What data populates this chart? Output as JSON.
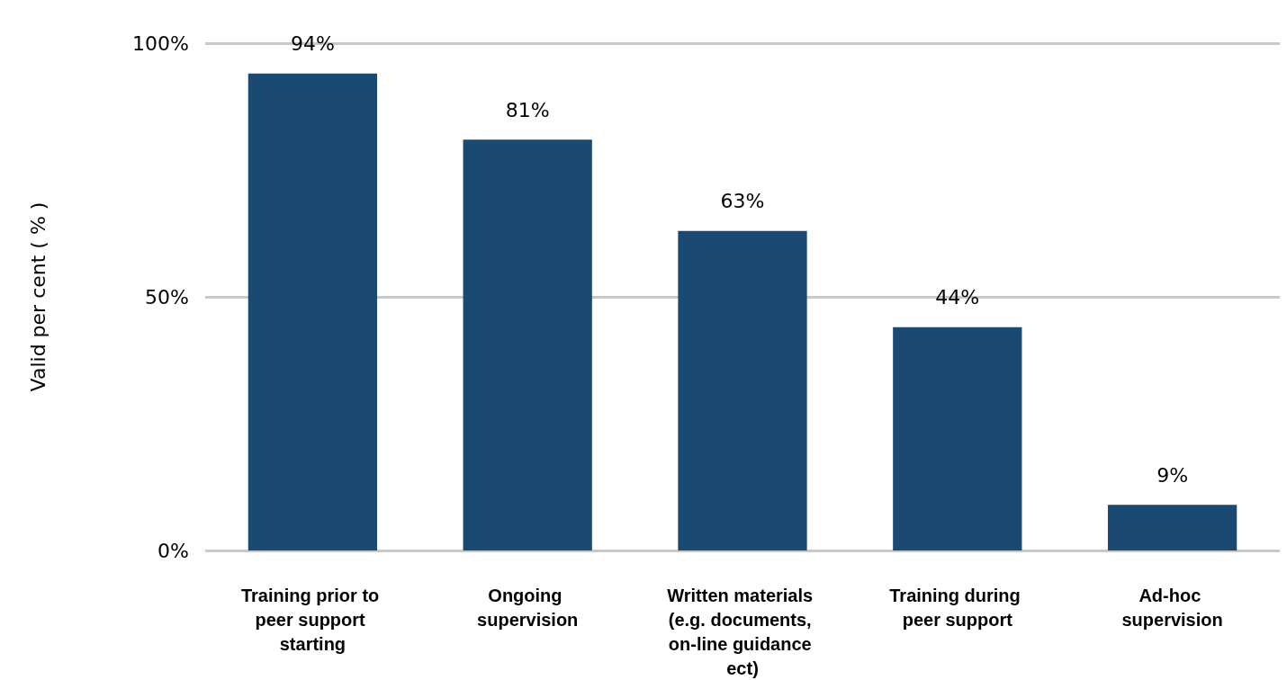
{
  "chart_data": {
    "type": "bar",
    "ylabel": "Valid per cent ( % )",
    "categories": [
      "Training prior to peer support starting",
      "Ongoing supervision",
      "Written materials (e.g. documents, on-line guidance ect)",
      "Training during peer support",
      "Ad-hoc supervision"
    ],
    "values": [
      94,
      81,
      63,
      44,
      9
    ],
    "value_labels": [
      "94%",
      "81%",
      "63%",
      "44%",
      "9%"
    ],
    "color": "#1a4a72",
    "ylim": [
      0,
      100
    ],
    "yticks": [
      {
        "value": 0,
        "label": "0%"
      },
      {
        "value": 50,
        "label": "50%"
      },
      {
        "value": 100,
        "label": "100%"
      }
    ],
    "grid": true
  }
}
